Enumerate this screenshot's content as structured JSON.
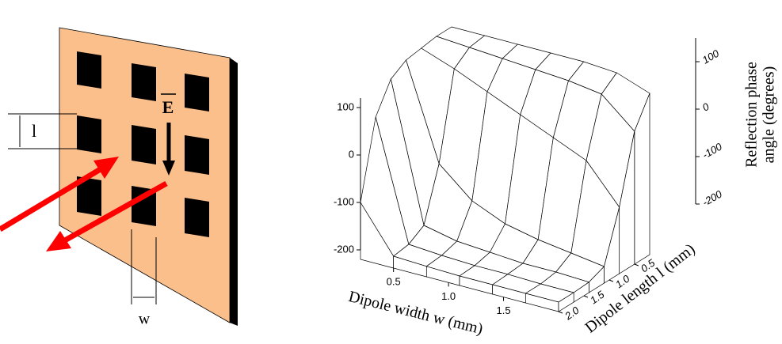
{
  "diagram": {
    "height_label": "l",
    "width_label": "w",
    "field_label": "E"
  },
  "chart_data": {
    "type": "surface3d",
    "xlabel": "Dipole width w  (mm)",
    "ylabel": "Dipole length l  (mm)",
    "zlabel": [
      "Reflection phase",
      "angle  (degrees)"
    ],
    "x": [
      0.2,
      0.5,
      0.8,
      1.1,
      1.4,
      1.7,
      2.0
    ],
    "y": [
      0.2,
      0.5,
      0.8,
      1.1,
      1.4,
      1.7,
      2.0
    ],
    "z": [
      [
        150,
        150,
        150,
        150,
        150,
        145,
        120
      ],
      [
        150,
        145,
        140,
        135,
        130,
        120,
        60
      ],
      [
        145,
        120,
        90,
        60,
        30,
        0,
        -80
      ],
      [
        140,
        -60,
        -120,
        -150,
        -165,
        -175,
        -185
      ],
      [
        120,
        -170,
        -185,
        -190,
        -195,
        -195,
        -198
      ],
      [
        60,
        -190,
        -195,
        -198,
        -198,
        -200,
        -200
      ],
      [
        -100,
        -195,
        -198,
        -200,
        -200,
        -200,
        -200
      ]
    ],
    "xlim": [
      0.2,
      2.0
    ],
    "ylim": [
      0.2,
      2.0
    ],
    "zlim": [
      -200,
      150
    ],
    "xticks": [
      0.5,
      {
        "value": 1,
        "label": "1.0"
      },
      1.5
    ],
    "yticks": [
      0.5,
      {
        "value": 1,
        "label": "1.0"
      },
      1.5,
      {
        "value": 2,
        "label": "2.0"
      }
    ],
    "zticks": [
      100,
      0,
      -100,
      -200
    ],
    "color": "#ffffff"
  }
}
